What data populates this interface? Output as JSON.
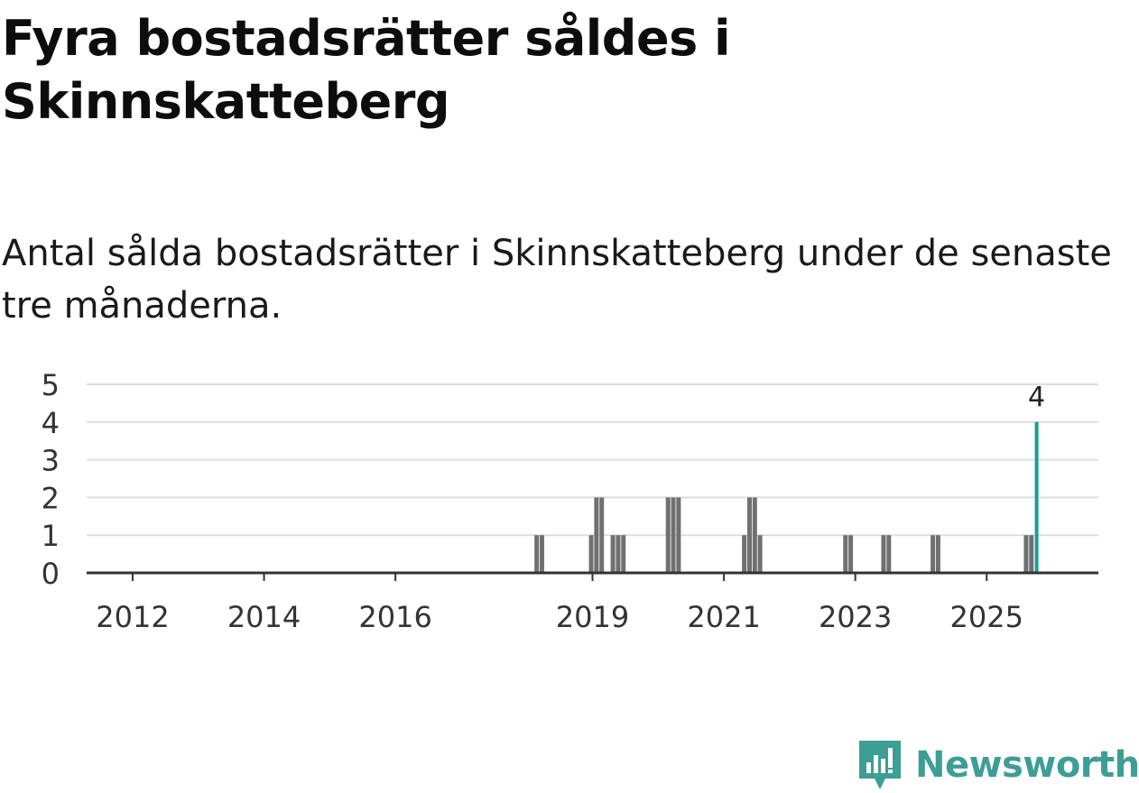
{
  "header": {
    "title": "Fyra bostadsrätter såldes i Skinnskatteberg",
    "subtitle": "Antal sålda bostadsrätter i Skinnskatteberg under de senaste tre månaderna."
  },
  "brand": {
    "name": "Newsworthy",
    "color": "#3d9e96"
  },
  "colors": {
    "bar": "#707070",
    "highlight": "#1a9e92",
    "grid": "#dddddd",
    "axis": "#333333"
  },
  "chart_data": {
    "type": "bar",
    "title": "Fyra bostadsrätter såldes i Skinnskatteberg",
    "subtitle": "Antal sålda bostadsrätter i Skinnskatteberg under de senaste tre månaderna.",
    "xlabel": "",
    "ylabel": "",
    "ylim": [
      0,
      5
    ],
    "yticks": [
      0,
      1,
      2,
      3,
      4,
      5
    ],
    "xlim": [
      2011.3,
      2026.7
    ],
    "xticks": [
      {
        "value": 2012,
        "label": "2012"
      },
      {
        "value": 2014,
        "label": "2014"
      },
      {
        "value": 2016,
        "label": "2016"
      },
      {
        "value": 2019,
        "label": "2019"
      },
      {
        "value": 2021,
        "label": "2021"
      },
      {
        "value": 2023,
        "label": "2023"
      },
      {
        "value": 2025,
        "label": "2025"
      }
    ],
    "x": [
      2018.15,
      2018.23,
      2018.98,
      2019.06,
      2019.14,
      2019.31,
      2019.39,
      2019.47,
      2020.15,
      2020.23,
      2020.31,
      2021.31,
      2021.39,
      2021.47,
      2021.55,
      2022.85,
      2022.93,
      2023.43,
      2023.51,
      2024.18,
      2024.26,
      2025.6,
      2025.68,
      2025.76
    ],
    "values": [
      1,
      1,
      1,
      2,
      2,
      1,
      1,
      1,
      2,
      2,
      2,
      1,
      2,
      2,
      1,
      1,
      1,
      1,
      1,
      1,
      1,
      1,
      1,
      4
    ],
    "highlight_index": 23,
    "annotation": {
      "text": "4"
    },
    "grid": true
  }
}
